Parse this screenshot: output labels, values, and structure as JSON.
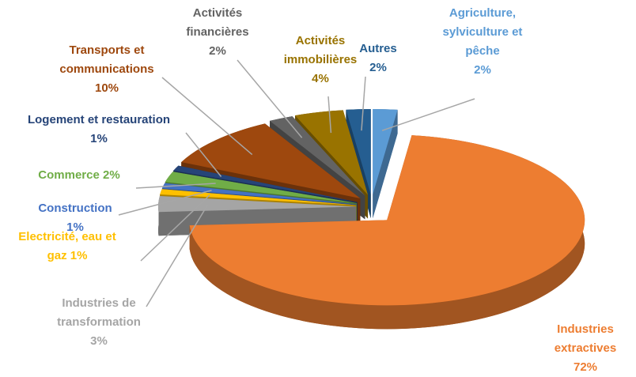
{
  "chart_data": {
    "type": "pie3d",
    "categories": [
      "Agriculture, sylviculture et pêche",
      "Industries extractives",
      "Industries de transformation",
      "Electricité, eau et gaz",
      "Construction",
      "Commerce",
      "Logement et restauration",
      "Transports et communications",
      "Activités financières",
      "Activités immobilières",
      "Autres"
    ],
    "values": [
      2,
      72,
      3,
      1,
      1,
      2,
      1,
      10,
      2,
      4,
      2
    ],
    "value_labels": [
      "2%",
      "72%",
      "3%",
      "1%",
      "1%",
      "2%",
      "1%",
      "10%",
      "2%",
      "4%",
      "2%"
    ],
    "colors": [
      "#5b9bd5",
      "#ed7d31",
      "#a5a5a5",
      "#ffc000",
      "#4472c4",
      "#70ad47",
      "#264478",
      "#9e480e",
      "#636363",
      "#997300",
      "#255e91"
    ]
  }
}
